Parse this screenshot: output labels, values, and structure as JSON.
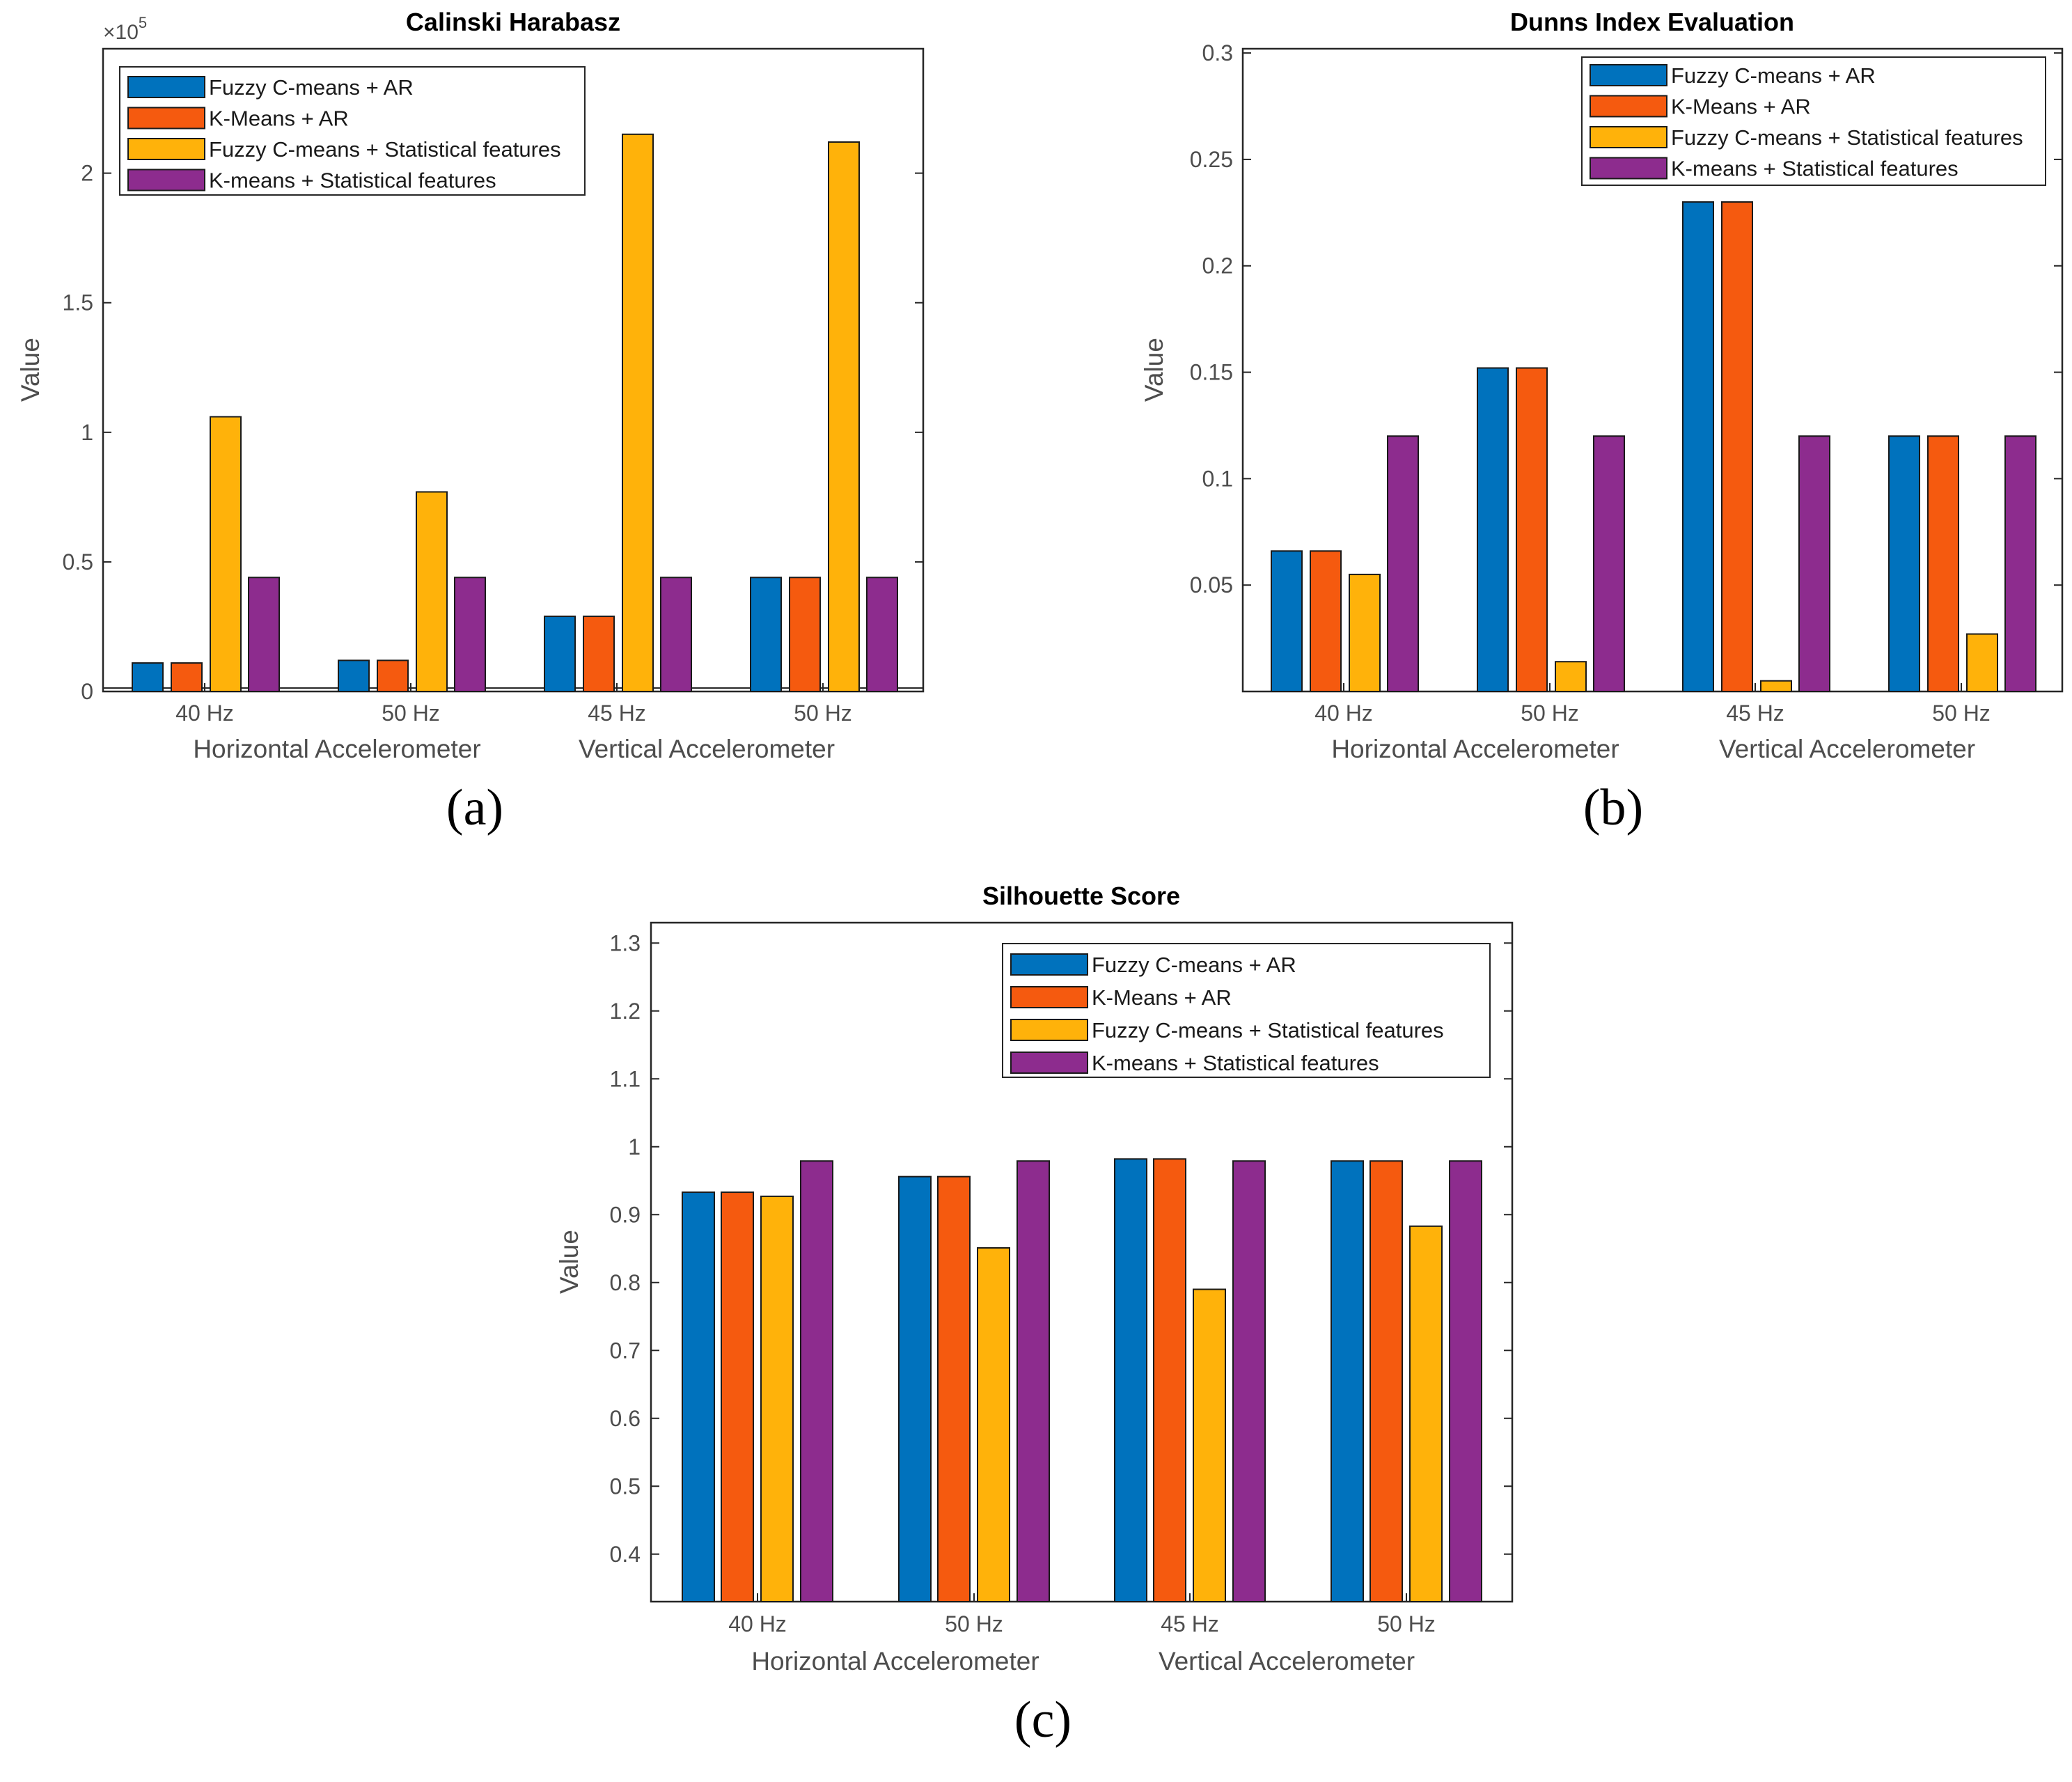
{
  "colors": {
    "fuzzy_ar": "#0072BD",
    "kmeans_ar": "#F55A0F",
    "fuzzy_stat": "#FFB20A",
    "kmeans_stat": "#8D2C8E",
    "axis": "#262626",
    "tick_text": "#4D4D4D",
    "background": "#FFFFFF"
  },
  "chart_data": [
    {
      "panel": "a",
      "caption": "(a)",
      "type": "bar",
      "title": "Calinski Harabasz",
      "ylabel": "Value",
      "y_exponent": "×10",
      "y_exponent_power": "5",
      "ylim": [
        0,
        2.48
      ],
      "yticks": [
        0,
        0.5,
        1,
        1.5,
        2
      ],
      "ytick_labels": [
        "0",
        "0.5",
        "1",
        "1.5",
        "2"
      ],
      "categories": [
        "40 Hz",
        "50 Hz",
        "45 Hz",
        "50  Hz"
      ],
      "groups": [
        "Horizontal Accelerometer",
        "Vertical Accelerometer"
      ],
      "legend_position": "top-left",
      "series": [
        {
          "name": "Fuzzy C-means + AR",
          "color_key": "fuzzy_ar",
          "values": [
            0.11,
            0.12,
            0.29,
            0.44
          ]
        },
        {
          "name": "K-Means + AR",
          "color_key": "kmeans_ar",
          "values": [
            0.11,
            0.12,
            0.29,
            0.44
          ]
        },
        {
          "name": "Fuzzy C-means + Statistical features",
          "color_key": "fuzzy_stat",
          "values": [
            1.06,
            0.77,
            2.15,
            2.12
          ]
        },
        {
          "name": "K-means + Statistical features",
          "color_key": "kmeans_stat",
          "values": [
            0.44,
            0.44,
            0.44,
            0.44
          ]
        }
      ]
    },
    {
      "panel": "b",
      "caption": "(b)",
      "type": "bar",
      "title": "Dunns Index Evaluation",
      "ylabel": "Value",
      "ylim": [
        0,
        0.302
      ],
      "yticks": [
        0.05,
        0.1,
        0.15,
        0.2,
        0.25,
        0.3
      ],
      "ytick_labels": [
        "0.05",
        "0.1",
        "0.15",
        "0.2",
        "0.25",
        "0.3"
      ],
      "categories": [
        "40 Hz",
        "50 Hz",
        "45 Hz",
        "50  Hz"
      ],
      "groups": [
        "Horizontal Accelerometer",
        "Vertical Accelerometer"
      ],
      "legend_position": "top-right",
      "series": [
        {
          "name": "Fuzzy C-means + AR",
          "color_key": "fuzzy_ar",
          "values": [
            0.066,
            0.152,
            0.23,
            0.12
          ]
        },
        {
          "name": "K-Means + AR",
          "color_key": "kmeans_ar",
          "values": [
            0.066,
            0.152,
            0.23,
            0.12
          ]
        },
        {
          "name": "Fuzzy C-means + Statistical features",
          "color_key": "fuzzy_stat",
          "values": [
            0.055,
            0.014,
            0.005,
            0.027
          ]
        },
        {
          "name": "K-means + Statistical features",
          "color_key": "kmeans_stat",
          "values": [
            0.12,
            0.12,
            0.12,
            0.12
          ]
        }
      ]
    },
    {
      "panel": "c",
      "caption": "(c)",
      "type": "bar",
      "title": "Silhouette Score",
      "ylabel": "Value",
      "ylim": [
        0.33,
        1.33
      ],
      "yticks": [
        0.4,
        0.5,
        0.6,
        0.7,
        0.8,
        0.9,
        1,
        1.1,
        1.2,
        1.3
      ],
      "ytick_labels": [
        "0.4",
        "0.5",
        "0.6",
        "0.7",
        "0.8",
        "0.9",
        "1",
        "1.1",
        "1.2",
        "1.3"
      ],
      "categories": [
        "40 Hz",
        "50 Hz",
        "45 Hz",
        "50  Hz"
      ],
      "groups": [
        "Horizontal Accelerometer",
        "Vertical Accelerometer"
      ],
      "legend_position": "top-right",
      "series": [
        {
          "name": "Fuzzy C-means + AR",
          "color_key": "fuzzy_ar",
          "values": [
            0.933,
            0.956,
            0.982,
            0.979
          ]
        },
        {
          "name": "K-Means + AR",
          "color_key": "kmeans_ar",
          "values": [
            0.933,
            0.956,
            0.982,
            0.979
          ]
        },
        {
          "name": "Fuzzy C-means + Statistical features",
          "color_key": "fuzzy_stat",
          "values": [
            0.927,
            0.851,
            0.79,
            0.883
          ]
        },
        {
          "name": "K-means + Statistical features",
          "color_key": "kmeans_stat",
          "values": [
            0.979,
            0.979,
            0.979,
            0.979
          ]
        }
      ]
    }
  ]
}
